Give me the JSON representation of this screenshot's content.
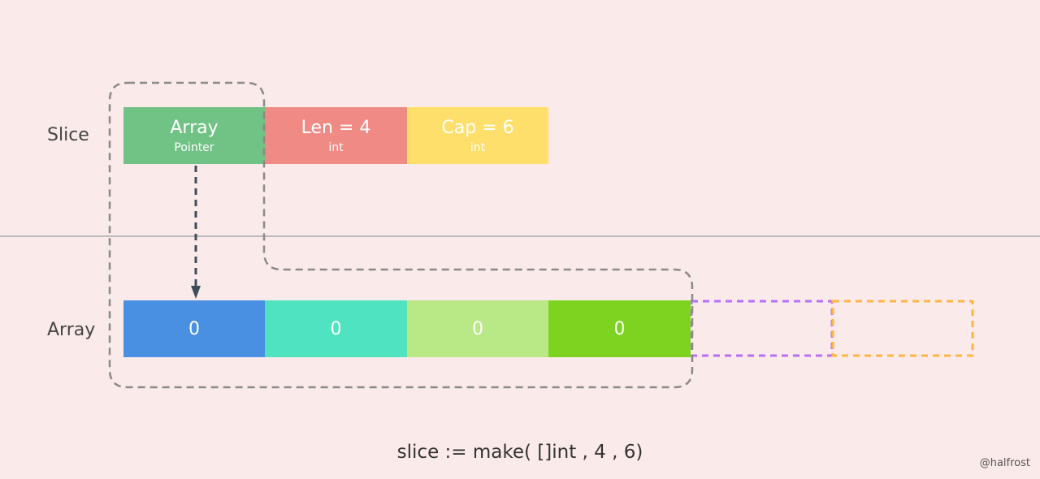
{
  "labels": {
    "slice": "Slice",
    "array": "Array"
  },
  "slice_fields": [
    {
      "title": "Array",
      "subtitle": "Pointer",
      "color": "#71c285"
    },
    {
      "title": "Len = 4",
      "subtitle": "int",
      "color": "#f08a85"
    },
    {
      "title": "Cap = 6",
      "subtitle": "int",
      "color": "#ffdf6b"
    }
  ],
  "array_cells": [
    {
      "value": "0",
      "color": "#4a90e2"
    },
    {
      "value": "0",
      "color": "#50e3c2"
    },
    {
      "value": "0",
      "color": "#b8e986"
    },
    {
      "value": "0",
      "color": "#7ed321"
    }
  ],
  "capacity_cells": [
    {
      "color": "#b86ef8"
    },
    {
      "color": "#ffb446"
    }
  ],
  "code": "slice := make( []int , 4 , 6)",
  "watermark": "@halfrost"
}
